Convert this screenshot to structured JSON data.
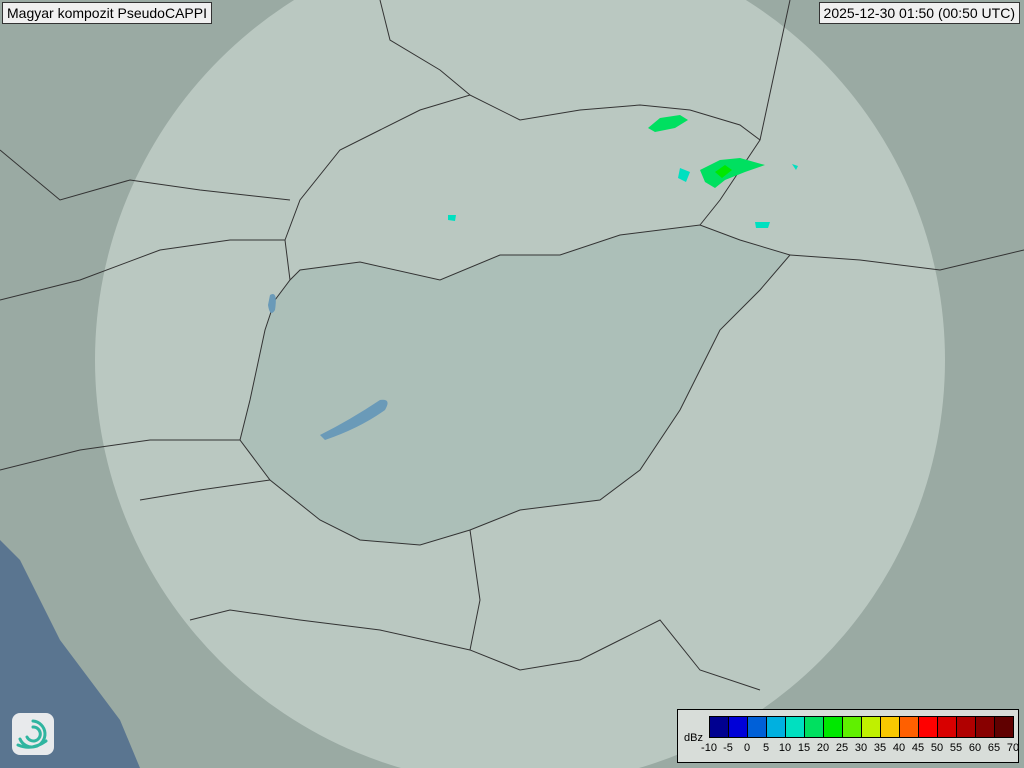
{
  "title": "Magyar kompozit  PseudoCAPPI",
  "timestamp": "2025-12-30 01:50 (00:50 UTC)",
  "legend": {
    "unit": "dBz",
    "ticks": [
      "-10",
      "-5",
      "0",
      "5",
      "10",
      "15",
      "20",
      "25",
      "30",
      "35",
      "40",
      "45",
      "50",
      "55",
      "60",
      "65",
      "70"
    ],
    "colors": [
      "#000090",
      "#0000d8",
      "#0060d8",
      "#00b0e0",
      "#00e0c0",
      "#00e060",
      "#00e800",
      "#60f000",
      "#c0f000",
      "#f8c800",
      "#ff6000",
      "#ff0000",
      "#d80000",
      "#b00000",
      "#880000",
      "#600000"
    ]
  },
  "logo": "omsz-swirl-logo",
  "colors": {
    "land": "#9aaaa3",
    "coverage": "#c9d4ce",
    "hungary": "#a6bab3",
    "sea": "#5a7590",
    "echo": "#00e060"
  }
}
